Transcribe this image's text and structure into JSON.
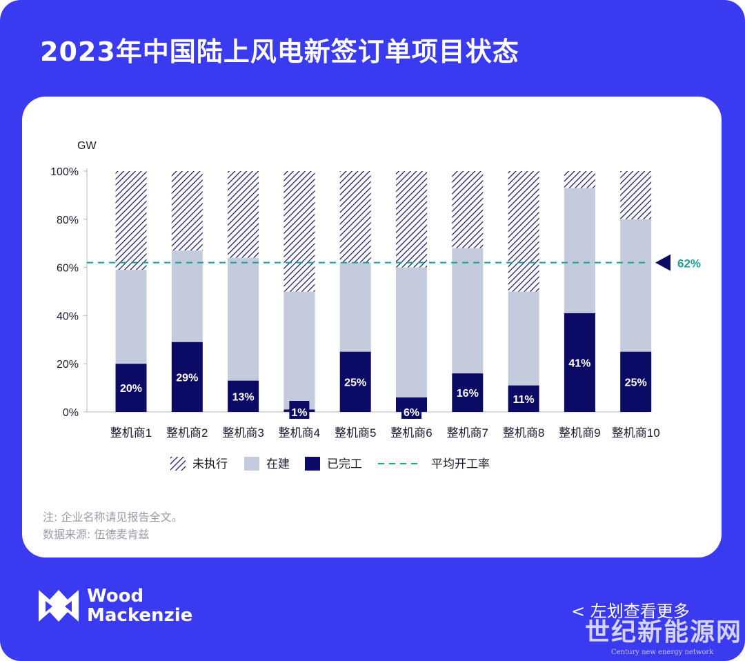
{
  "header": {
    "title": "2023年中国陆上风电新签订单项目状态"
  },
  "chart_data": {
    "type": "bar",
    "stacked": true,
    "unit_label": "GW",
    "categories": [
      "整机商1",
      "整机商2",
      "整机商3",
      "整机商4",
      "整机商5",
      "整机商6",
      "整机商7",
      "整机商8",
      "整机商9",
      "整机商10"
    ],
    "series": [
      {
        "name": "已完工",
        "color": "#0b0b66",
        "values": [
          20,
          29,
          13,
          1,
          25,
          6,
          16,
          11,
          41,
          25
        ]
      },
      {
        "name": "在建",
        "color": "#c3cbdc",
        "values": [
          39,
          38,
          51,
          49,
          37,
          54,
          52,
          39,
          52,
          55
        ]
      },
      {
        "name": "未执行",
        "color": "#0b0b66",
        "pattern": "diagonal-hatch",
        "values": [
          41,
          33,
          36,
          50,
          38,
          40,
          32,
          50,
          7,
          20
        ]
      }
    ],
    "data_labels": [
      "20%",
      "29%",
      "13%",
      "1%",
      "25%",
      "6%",
      "16%",
      "11%",
      "41%",
      "25%"
    ],
    "y_ticks": [
      "0%",
      "20%",
      "40%",
      "60%",
      "80%",
      "100%"
    ],
    "ylim": [
      0,
      100
    ],
    "reference_line": {
      "name": "平均开工率",
      "value": 62,
      "label": "62%",
      "color": "#1f9e97",
      "style": "dashed"
    },
    "legend": [
      "未执行",
      "在建",
      "已完工",
      "平均开工率"
    ],
    "legend_position": "bottom"
  },
  "notes": {
    "note1": "注: 企业名称请见报告全文。",
    "note2": "数据来源: 伍德麦肯兹"
  },
  "footer": {
    "brand_line1": "Wood",
    "brand_line2": "Mackenzie",
    "swipe_hint": "< 左划查看更多",
    "watermark": "世纪新能源网",
    "watermark_sub": "Century new energy network"
  }
}
